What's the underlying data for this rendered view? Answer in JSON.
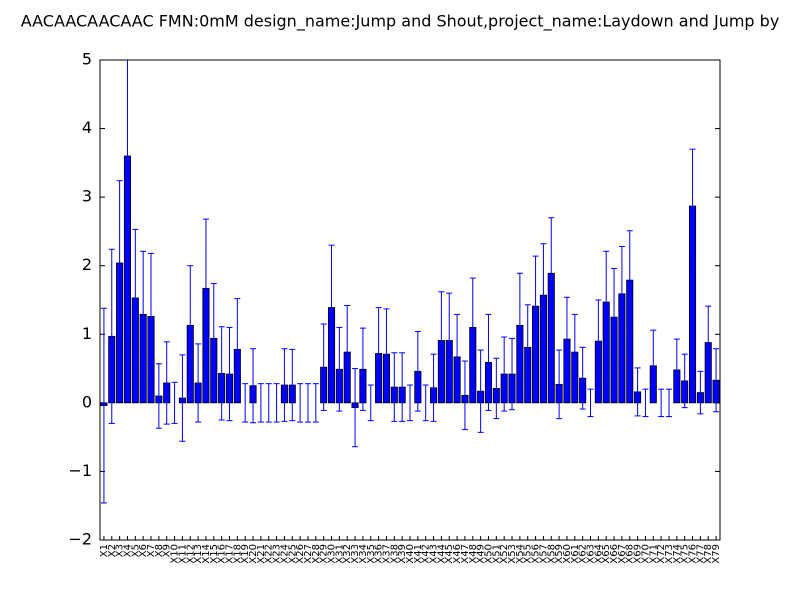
{
  "chart_data": {
    "type": "bar",
    "title": "AACAACAACAAC  FMN:0mM  design_name:Jump and Shout,project_name:Laydown and Jump by",
    "categories": [
      "X1",
      "X2",
      "X3",
      "X4",
      "X5",
      "X6",
      "X7",
      "X8",
      "X9",
      "X10",
      "X11",
      "X12",
      "X13",
      "X14",
      "X15",
      "X16",
      "X17",
      "X18",
      "X19",
      "X20",
      "X21",
      "X22",
      "X23",
      "X24",
      "X25",
      "X26",
      "X27",
      "X28",
      "X29",
      "X30",
      "X31",
      "X32",
      "X33",
      "X34",
      "X35",
      "X36",
      "X37",
      "X38",
      "X39",
      "X40",
      "X41",
      "X42",
      "X43",
      "X44",
      "X45",
      "X46",
      "X47",
      "X48",
      "X49",
      "X50",
      "X51",
      "X52",
      "X53",
      "X54",
      "X55",
      "X56",
      "X57",
      "X58",
      "X59",
      "X60",
      "X61",
      "X62",
      "X63",
      "X64",
      "X65",
      "X66",
      "X67",
      "X68",
      "X69",
      "X70",
      "X71",
      "X72",
      "X73",
      "X74",
      "X75",
      "X76",
      "X77",
      "X78",
      "X79"
    ],
    "values": [
      -0.04,
      0.97,
      2.04,
      3.6,
      1.53,
      1.29,
      1.26,
      0.1,
      0.29,
      0,
      0.07,
      1.13,
      0.29,
      1.67,
      0.94,
      0.43,
      0.42,
      0.78,
      0,
      0.25,
      0,
      0,
      0,
      0.26,
      0.26,
      0,
      0,
      0,
      0.52,
      1.39,
      0.49,
      0.74,
      -0.07,
      0.49,
      0,
      0.72,
      0.71,
      0.23,
      0.23,
      0,
      0.46,
      0,
      0.22,
      0.91,
      0.91,
      0.67,
      0.11,
      1.1,
      0.17,
      0.59,
      0.21,
      0.42,
      0.42,
      1.13,
      0.81,
      1.41,
      1.57,
      1.89,
      0.27,
      0.93,
      0.74,
      0.36,
      0,
      0.9,
      1.47,
      1.25,
      1.59,
      1.79,
      0.16,
      0,
      0.54,
      0,
      0,
      0.48,
      0.32,
      2.87,
      0.15,
      0.88,
      0.33
    ],
    "errors": [
      1.42,
      1.27,
      1.2,
      1.4,
      1.0,
      0.92,
      0.92,
      0.47,
      0.6,
      0.3,
      0.63,
      0.87,
      0.57,
      1.01,
      0.8,
      0.68,
      0.68,
      0.74,
      0.28,
      0.54,
      0.28,
      0.28,
      0.28,
      0.53,
      0.52,
      0.28,
      0.28,
      0.28,
      0.63,
      0.91,
      0.61,
      0.68,
      0.57,
      0.6,
      0.26,
      0.67,
      0.66,
      0.5,
      0.5,
      0.26,
      0.58,
      0.26,
      0.49,
      0.71,
      0.69,
      0.62,
      0.5,
      0.72,
      0.6,
      0.7,
      0.44,
      0.54,
      0.52,
      0.76,
      0.62,
      0.73,
      0.75,
      0.81,
      0.5,
      0.61,
      0.55,
      0.45,
      0.2,
      0.6,
      0.74,
      0.71,
      0.69,
      0.72,
      0.35,
      0.2,
      0.52,
      0.2,
      0.2,
      0.45,
      0.39,
      0.83,
      0.31,
      0.53,
      0.46
    ],
    "color": "#0000ff",
    "error_color": "#0000ff",
    "ylim": [
      -2,
      5
    ],
    "yticks": [
      {
        "value": -2,
        "label": "−2"
      },
      {
        "value": -1,
        "label": "−1"
      },
      0,
      1,
      2,
      3,
      4,
      5
    ]
  }
}
